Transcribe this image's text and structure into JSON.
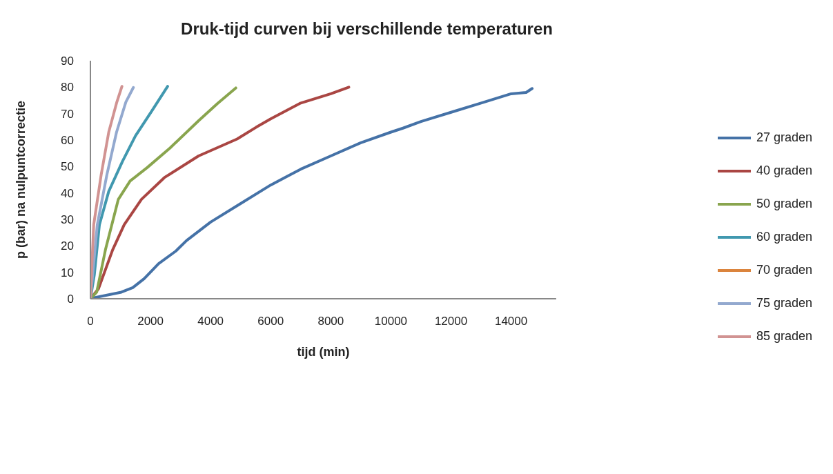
{
  "chart_data": {
    "type": "line",
    "title": "Druk-tijd curven bij verschillende temperaturen",
    "xlabel": "tijd (min)",
    "ylabel": "p (bar) na nulpuntcorrectie",
    "xlim": [
      0,
      15500
    ],
    "xticks": [
      0,
      2000,
      4000,
      6000,
      8000,
      10000,
      12000,
      14000
    ],
    "ylim": [
      0,
      90
    ],
    "yticks": [
      0,
      10,
      20,
      30,
      40,
      50,
      60,
      70,
      80,
      90
    ],
    "grid": false,
    "legend": "right",
    "marker": "none",
    "line_style": "solid",
    "series": [
      {
        "name": "27 graden",
        "color": "#4572a7",
        "x": [
          0,
          130,
          1030,
          1410,
          1790,
          2270,
          2840,
          3200,
          4000,
          5000,
          6000,
          7000,
          8000,
          9000,
          10000,
          10400,
          11000,
          12000,
          13000,
          14000,
          14500,
          14700
        ],
        "values": [
          0,
          0.4,
          2.5,
          4.2,
          7.6,
          13.3,
          18,
          22,
          29,
          36,
          43,
          49,
          54,
          59,
          63,
          64.5,
          67,
          70.5,
          74,
          77.5,
          78,
          79.5
        ]
      },
      {
        "name": "40 graden",
        "color": "#aa4643",
        "x": [
          0,
          270,
          740,
          1125,
          1700,
          2460,
          3600,
          4880,
          5510,
          6000,
          7000,
          8000,
          8600
        ],
        "values": [
          0,
          3.8,
          18.5,
          28,
          37.6,
          45.8,
          54,
          60.4,
          64.8,
          68,
          74,
          77.5,
          80
        ]
      },
      {
        "name": "50 graden",
        "color": "#89a54e",
        "x": [
          0,
          210,
          500,
          930,
          1320,
          1890,
          2650,
          3600,
          4230,
          4840
        ],
        "values": [
          0,
          2.5,
          18.5,
          37.6,
          44.5,
          49.6,
          57,
          67.3,
          73.8,
          79.7
        ]
      },
      {
        "name": "60 graden",
        "color": "#4198af",
        "x": [
          0,
          130,
          300,
          610,
          1070,
          1500,
          2020,
          2570
        ],
        "values": [
          0,
          9,
          28,
          40.6,
          52,
          61.6,
          70.6,
          80.3
        ]
      },
      {
        "name": "70 graden",
        "color": "#db843d"
      },
      {
        "name": "75 graden",
        "color": "#93a9cf",
        "x": [
          0,
          230,
          550,
          870,
          1180,
          1430
        ],
        "values": [
          0,
          28,
          47,
          63,
          74.4,
          79.9
        ]
      },
      {
        "name": "85 graden",
        "color": "#d19392",
        "x": [
          0,
          110,
          360,
          610,
          880,
          1050
        ],
        "values": [
          0,
          28,
          47,
          63,
          74.4,
          80.3
        ]
      }
    ]
  }
}
